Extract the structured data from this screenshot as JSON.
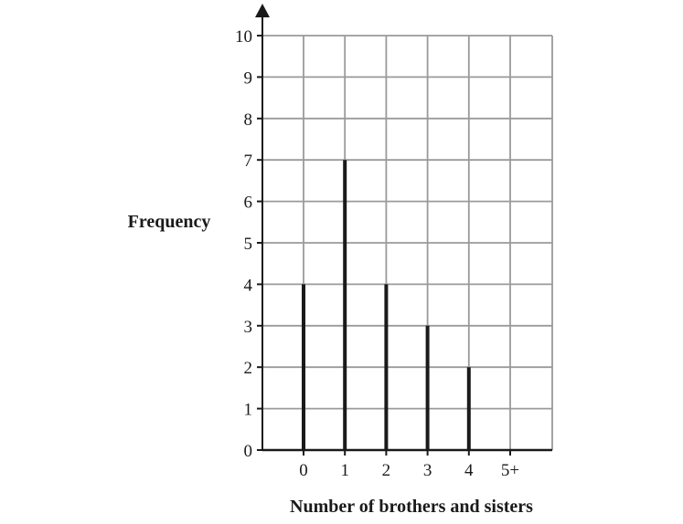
{
  "chart_data": {
    "type": "bar",
    "style": "vertical line chart",
    "categories": [
      "0",
      "1",
      "2",
      "3",
      "4",
      "5+"
    ],
    "values": [
      4,
      7,
      4,
      3,
      2,
      0
    ],
    "yticks": [
      "0",
      "1",
      "2",
      "3",
      "4",
      "5",
      "6",
      "7",
      "8",
      "9",
      "10"
    ],
    "xlabel": "Number of brothers and sisters",
    "ylabel": "Frequency",
    "ylim": [
      0,
      10
    ],
    "grid": true,
    "colors": {
      "grid": "#9a9a9a",
      "axis": "#1a1a1a",
      "bar": "#1a1a1a"
    }
  }
}
